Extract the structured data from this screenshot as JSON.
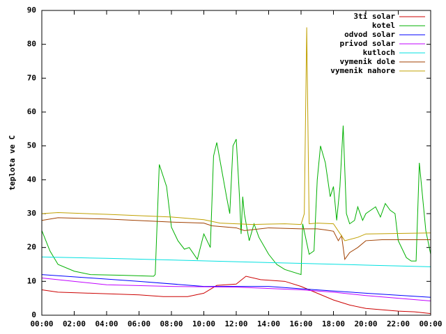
{
  "chart_data": {
    "type": "line",
    "y_label": "teplota ve C",
    "xlim": [
      0,
      24
    ],
    "xticks": [
      {
        "value": 0,
        "label": "00:00"
      },
      {
        "value": 2,
        "label": "02:00"
      },
      {
        "value": 4,
        "label": "04:00"
      },
      {
        "value": 6,
        "label": "06:00"
      },
      {
        "value": 8,
        "label": "08:00"
      },
      {
        "value": 10,
        "label": "10:00"
      },
      {
        "value": 12,
        "label": "12:00"
      },
      {
        "value": 14,
        "label": "14:00"
      },
      {
        "value": 16,
        "label": "16:00"
      },
      {
        "value": 18,
        "label": "18:00"
      },
      {
        "value": 20,
        "label": "20:00"
      },
      {
        "value": 22,
        "label": "22:00"
      },
      {
        "value": 24,
        "label": "00:00"
      }
    ],
    "ylim": [
      0,
      90
    ],
    "yticks": [
      0,
      10,
      20,
      30,
      40,
      50,
      60,
      70,
      80,
      90
    ],
    "legend": "top-right",
    "series": [
      {
        "name": "3ti solar",
        "color": "#cc0000",
        "x": [
          0,
          1,
          3,
          6,
          7.5,
          9,
          10,
          10.8,
          12,
          12.6,
          13.5,
          15,
          16,
          17,
          18,
          19,
          20,
          22,
          23,
          24
        ],
        "values": [
          7.5,
          6.8,
          6.5,
          6,
          5.5,
          5.5,
          6.5,
          8.8,
          9.2,
          11.5,
          10.5,
          10,
          8.5,
          6.5,
          4.5,
          3,
          2,
          1.2,
          1,
          0.5
        ]
      },
      {
        "name": "kotel",
        "color": "#00b000",
        "x": [
          0,
          0.5,
          1,
          2,
          3,
          5,
          6.9,
          7,
          7.25,
          7.7,
          8,
          8.4,
          8.8,
          9.1,
          9.6,
          10,
          10.4,
          10.6,
          10.8,
          11.1,
          11.4,
          11.6,
          11.8,
          12,
          12.2,
          12.3,
          12.4,
          12.5,
          12.8,
          13.1,
          13.4,
          14,
          14.5,
          15,
          16,
          16.1,
          16.5,
          16.8,
          17,
          17.2,
          17.5,
          17.8,
          18,
          18.2,
          18.4,
          18.6,
          18.8,
          19,
          19.3,
          19.5,
          19.8,
          20,
          20.3,
          20.6,
          20.9,
          21.2,
          21.5,
          21.8,
          22,
          22.5,
          22.8,
          23.1,
          23.3,
          23.7,
          24
        ],
        "values": [
          25,
          19,
          15,
          13,
          12,
          11.8,
          11.5,
          12,
          44.5,
          38,
          26,
          22,
          19.5,
          20,
          16.5,
          24,
          20,
          47,
          51,
          43,
          35,
          30,
          50,
          52,
          35,
          24,
          35,
          30,
          22,
          27,
          23,
          18,
          15,
          13.5,
          12,
          27,
          18,
          19,
          40,
          50,
          45,
          35,
          38,
          28,
          38,
          56,
          30,
          27,
          28,
          32,
          28,
          30,
          31,
          32,
          29,
          33,
          31,
          30,
          22,
          17,
          16,
          16,
          45,
          25,
          18
        ]
      },
      {
        "name": "odvod solar",
        "color": "#0000ff",
        "x": [
          0,
          6,
          10,
          14,
          16,
          20,
          24
        ],
        "values": [
          12,
          10,
          8.5,
          8.5,
          7.8,
          6.5,
          5.3
        ]
      },
      {
        "name": "privod solar",
        "color": "#c000ff",
        "x": [
          0,
          4,
          8,
          12,
          16,
          18,
          20,
          24
        ],
        "values": [
          11,
          9,
          8.5,
          8.3,
          7.5,
          6.8,
          5.8,
          4.2
        ]
      },
      {
        "name": "kutloch",
        "color": "#00e0e0",
        "x": [
          0,
          4,
          8,
          12,
          16,
          20,
          24
        ],
        "values": [
          17.2,
          16.8,
          16.3,
          15.8,
          15.3,
          14.8,
          14.3
        ]
      },
      {
        "name": "vymenik dole",
        "color": "#a04000",
        "x": [
          0,
          1,
          4,
          8,
          10,
          10.5,
          12,
          12.5,
          14,
          16,
          17,
          17.5,
          18,
          18.3,
          18.5,
          18.7,
          19,
          19.5,
          20,
          21,
          24
        ],
        "values": [
          28,
          28.8,
          28.4,
          27.5,
          27.2,
          26.4,
          25.8,
          25,
          25.8,
          25.5,
          25.5,
          25.2,
          24.8,
          22,
          23.5,
          16.5,
          18.5,
          20,
          22,
          22.3,
          22.3
        ]
      },
      {
        "name": "vymenik nahore",
        "color": "#c0a000",
        "x": [
          0,
          1,
          4,
          8,
          10,
          11,
          12,
          13,
          15,
          16,
          16.2,
          16.35,
          16.5,
          17,
          18,
          18.7,
          19.5,
          20,
          24
        ],
        "values": [
          30,
          30.3,
          29.8,
          29,
          28.2,
          27.2,
          27,
          26.8,
          27,
          26.8,
          30,
          85,
          27,
          27.2,
          27,
          22,
          23,
          24,
          24.3
        ]
      }
    ]
  }
}
